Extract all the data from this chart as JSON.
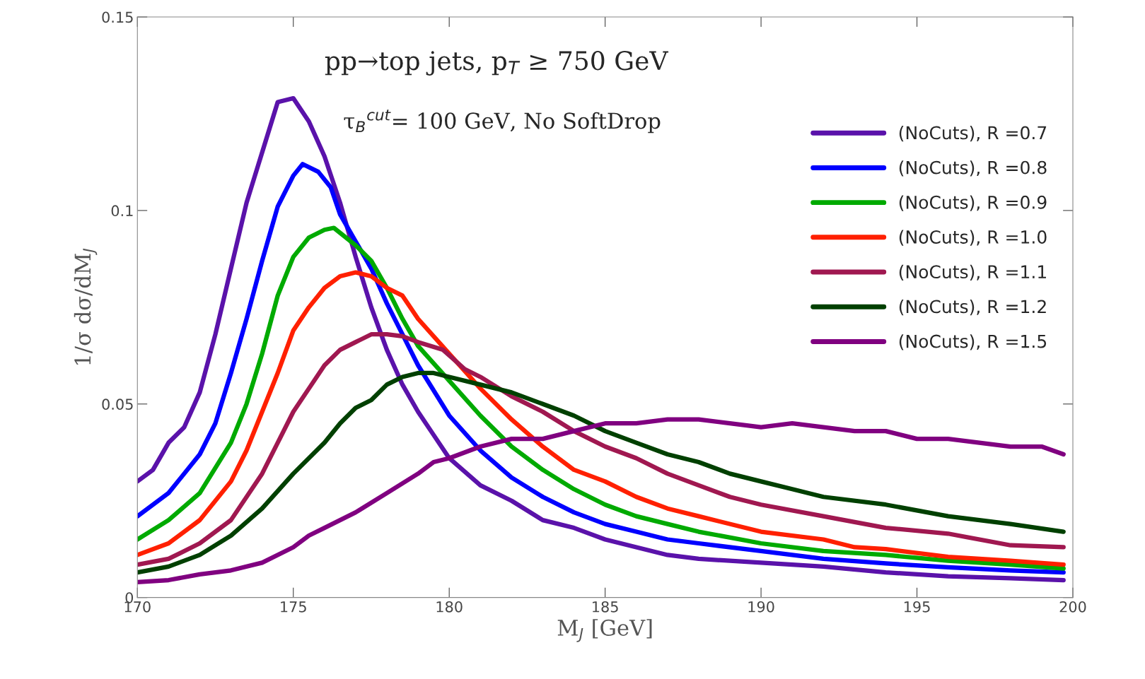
{
  "chart_data": {
    "type": "line",
    "xlabel": "M$_{J}$ [GeV]",
    "ylabel": "1/σ dσ/dM$_{J}$",
    "annotations": [
      "pp→top jets, p$_{T}$ ≥ 750 GeV",
      "τ$_{B}$$^{cut}$= 100 GeV, No SoftDrop"
    ],
    "xlim": [
      170,
      200
    ],
    "xticks": [
      170,
      175,
      180,
      185,
      190,
      195,
      200
    ],
    "ylim": [
      0,
      0.15
    ],
    "yticks": [
      {
        "value": 0,
        "label": "0"
      },
      0.05,
      0.1,
      0.15
    ],
    "legend": "top right",
    "grid": false,
    "line_style": "solid",
    "marker": "none",
    "series": [
      {
        "name": "(NoCuts), R =0.7",
        "color": "#5a12aa",
        "x": [
          170,
          170.5,
          171,
          171.5,
          172,
          172.5,
          173,
          173.5,
          174,
          174.5,
          175,
          175.5,
          176,
          176.5,
          177,
          177.5,
          178,
          178.5,
          179,
          179.5,
          180,
          181,
          182,
          183,
          184,
          185,
          186,
          187,
          188,
          190,
          192,
          194,
          196,
          198,
          199.7
        ],
        "values": [
          0.03,
          0.033,
          0.04,
          0.044,
          0.053,
          0.068,
          0.085,
          0.102,
          0.115,
          0.128,
          0.129,
          0.123,
          0.114,
          0.102,
          0.088,
          0.075,
          0.064,
          0.055,
          0.048,
          0.042,
          0.036,
          0.029,
          0.025,
          0.02,
          0.018,
          0.015,
          0.013,
          0.011,
          0.01,
          0.009,
          0.008,
          0.0065,
          0.0055,
          0.005,
          0.0045
        ]
      },
      {
        "name": "(NoCuts), R =0.8",
        "color": "#0000ff",
        "x": [
          170,
          171,
          172,
          172.5,
          173,
          173.5,
          174,
          174.5,
          175,
          175.3,
          175.8,
          176.2,
          176.5,
          177,
          177.5,
          178,
          178.5,
          179,
          180,
          181,
          182,
          183,
          184,
          185,
          186,
          187,
          188,
          190,
          192,
          194,
          196,
          198,
          199.7
        ],
        "values": [
          0.021,
          0.027,
          0.037,
          0.045,
          0.058,
          0.072,
          0.087,
          0.101,
          0.109,
          0.112,
          0.11,
          0.106,
          0.099,
          0.092,
          0.085,
          0.076,
          0.068,
          0.06,
          0.047,
          0.038,
          0.031,
          0.026,
          0.022,
          0.019,
          0.017,
          0.015,
          0.014,
          0.012,
          0.01,
          0.0088,
          0.0078,
          0.007,
          0.0065
        ]
      },
      {
        "name": "(NoCuts), R =0.9",
        "color": "#00aa00",
        "x": [
          170,
          171,
          172,
          173,
          173.5,
          174,
          174.5,
          175,
          175.5,
          176,
          176.3,
          177,
          177.5,
          178,
          178.5,
          179,
          180,
          181,
          182,
          183,
          184,
          185,
          186,
          187,
          188,
          190,
          192,
          194,
          196,
          198,
          199.7
        ],
        "values": [
          0.015,
          0.02,
          0.027,
          0.04,
          0.05,
          0.063,
          0.078,
          0.088,
          0.093,
          0.095,
          0.0955,
          0.091,
          0.087,
          0.08,
          0.072,
          0.065,
          0.056,
          0.047,
          0.039,
          0.033,
          0.028,
          0.024,
          0.021,
          0.019,
          0.017,
          0.014,
          0.012,
          0.011,
          0.0095,
          0.0085,
          0.0075
        ]
      },
      {
        "name": "(NoCuts), R =1.0",
        "color": "#ff2000",
        "x": [
          170,
          171,
          172,
          173,
          173.5,
          174,
          174.5,
          175,
          175.5,
          176,
          176.5,
          177,
          177.5,
          178,
          178.5,
          179,
          180,
          181,
          182,
          183,
          184,
          185,
          186,
          187,
          188,
          190,
          192,
          193,
          194,
          196,
          198,
          199.7
        ],
        "values": [
          0.011,
          0.014,
          0.02,
          0.03,
          0.038,
          0.048,
          0.058,
          0.069,
          0.075,
          0.08,
          0.083,
          0.084,
          0.083,
          0.08,
          0.078,
          0.072,
          0.063,
          0.054,
          0.046,
          0.039,
          0.033,
          0.03,
          0.026,
          0.023,
          0.021,
          0.017,
          0.015,
          0.013,
          0.0125,
          0.0105,
          0.0095,
          0.0085
        ]
      },
      {
        "name": "(NoCuts), R =1.1",
        "color": "#a01850",
        "x": [
          170,
          171,
          172,
          173,
          174,
          174.5,
          175,
          175.5,
          176,
          176.5,
          177,
          177.5,
          178,
          178.5,
          179,
          179.8,
          180.5,
          181,
          182,
          183,
          184,
          185,
          186,
          187,
          188,
          189,
          190,
          192,
          194,
          196,
          198,
          199.7
        ],
        "values": [
          0.0085,
          0.01,
          0.014,
          0.02,
          0.032,
          0.04,
          0.048,
          0.054,
          0.06,
          0.064,
          0.066,
          0.068,
          0.068,
          0.0675,
          0.066,
          0.064,
          0.059,
          0.057,
          0.052,
          0.048,
          0.043,
          0.039,
          0.036,
          0.032,
          0.029,
          0.026,
          0.024,
          0.021,
          0.018,
          0.0165,
          0.0135,
          0.013
        ]
      },
      {
        "name": "(NoCuts), R =1.2",
        "color": "#004000",
        "x": [
          170,
          171,
          172,
          173,
          174,
          175,
          176,
          176.5,
          177,
          177.5,
          178,
          178.5,
          179,
          179.5,
          180,
          181,
          182,
          183,
          184,
          185,
          186,
          187,
          188,
          189,
          190,
          191,
          192,
          194,
          196,
          198,
          199.7
        ],
        "values": [
          0.0065,
          0.008,
          0.011,
          0.016,
          0.023,
          0.032,
          0.04,
          0.045,
          0.049,
          0.051,
          0.055,
          0.057,
          0.058,
          0.058,
          0.057,
          0.055,
          0.053,
          0.05,
          0.047,
          0.043,
          0.04,
          0.037,
          0.035,
          0.032,
          0.03,
          0.028,
          0.026,
          0.024,
          0.021,
          0.019,
          0.017
        ]
      },
      {
        "name": "(NoCuts), R =1.5",
        "color": "#800080",
        "x": [
          170,
          171,
          172,
          173,
          174,
          175,
          175.5,
          176,
          177,
          178,
          179,
          179.5,
          180,
          181,
          182,
          183,
          184,
          185,
          186,
          187,
          188,
          189,
          190,
          191,
          192,
          193,
          194,
          195,
          196,
          197,
          198,
          199,
          199.7
        ],
        "values": [
          0.004,
          0.0045,
          0.006,
          0.007,
          0.009,
          0.013,
          0.016,
          0.018,
          0.022,
          0.027,
          0.032,
          0.035,
          0.036,
          0.039,
          0.041,
          0.041,
          0.043,
          0.045,
          0.045,
          0.046,
          0.046,
          0.045,
          0.044,
          0.045,
          0.044,
          0.043,
          0.043,
          0.041,
          0.041,
          0.04,
          0.039,
          0.039,
          0.037
        ]
      }
    ]
  }
}
